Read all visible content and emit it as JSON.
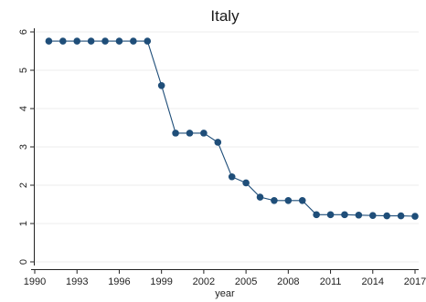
{
  "chart_data": {
    "type": "line",
    "title": "Italy",
    "xlabel": "year",
    "ylabel": "",
    "x_ticks": [
      1990,
      1993,
      1996,
      1999,
      2002,
      2005,
      2008,
      2011,
      2014,
      2017
    ],
    "y_ticks": [
      0,
      1,
      2,
      3,
      4,
      5,
      6
    ],
    "xlim": [
      1990,
      2017
    ],
    "ylim": [
      0,
      6
    ],
    "grid": "horizontal",
    "legend": "none",
    "colors": {
      "series": "#1f4e79",
      "grid": "#ececec",
      "axis": "#222222"
    },
    "series": [
      {
        "x": [
          1991,
          1992,
          1993,
          1994,
          1995,
          1996,
          1997,
          1998,
          1999,
          2000,
          2001,
          2002,
          2003,
          2004,
          2005,
          2006,
          2007,
          2008,
          2009,
          2010,
          2011,
          2012,
          2013,
          2014,
          2015,
          2016,
          2017
        ],
        "values": [
          5.76,
          5.76,
          5.76,
          5.76,
          5.76,
          5.76,
          5.76,
          5.76,
          4.6,
          3.36,
          3.36,
          3.36,
          3.12,
          2.22,
          2.06,
          1.69,
          1.6,
          1.6,
          1.6,
          1.23,
          1.23,
          1.23,
          1.22,
          1.21,
          1.2,
          1.2,
          1.19
        ]
      }
    ]
  }
}
